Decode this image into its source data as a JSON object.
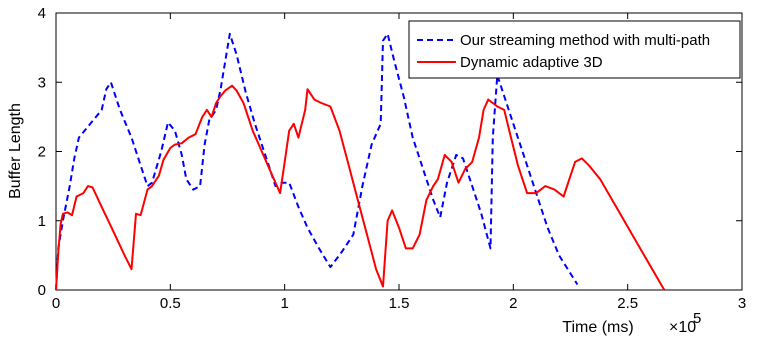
{
  "chart_data": {
    "type": "line",
    "xlabel": "Time (ms)",
    "x_multiplier_label": "×10",
    "x_multiplier_exp": "5",
    "ylabel": "Buffer Length",
    "xlim": [
      0,
      3
    ],
    "ylim": [
      0,
      4
    ],
    "x_ticks": [
      0,
      0.5,
      1,
      1.5,
      2,
      2.5,
      3
    ],
    "x_tick_labels": [
      "0",
      "0.5",
      "1",
      "1.5",
      "2",
      "2.5",
      "3"
    ],
    "y_ticks": [
      0,
      1,
      2,
      3,
      4
    ],
    "y_tick_labels": [
      "0",
      "1",
      "2",
      "3",
      "4"
    ],
    "grid": false,
    "legend_position": "top-right",
    "series": [
      {
        "name": "Our streaming method with multi-path",
        "color": "#0000ff",
        "style": "dashed",
        "points": [
          [
            0.0,
            0.0
          ],
          [
            0.01,
            0.6
          ],
          [
            0.03,
            1.0
          ],
          [
            0.06,
            1.5
          ],
          [
            0.08,
            1.9
          ],
          [
            0.1,
            2.2
          ],
          [
            0.15,
            2.4
          ],
          [
            0.2,
            2.6
          ],
          [
            0.22,
            2.9
          ],
          [
            0.24,
            3.0
          ],
          [
            0.28,
            2.6
          ],
          [
            0.33,
            2.2
          ],
          [
            0.37,
            1.8
          ],
          [
            0.4,
            1.5
          ],
          [
            0.42,
            1.55
          ],
          [
            0.46,
            2.0
          ],
          [
            0.49,
            2.42
          ],
          [
            0.52,
            2.3
          ],
          [
            0.55,
            1.95
          ],
          [
            0.57,
            1.6
          ],
          [
            0.6,
            1.45
          ],
          [
            0.63,
            1.5
          ],
          [
            0.65,
            2.1
          ],
          [
            0.67,
            2.45
          ],
          [
            0.7,
            2.6
          ],
          [
            0.72,
            2.9
          ],
          [
            0.74,
            3.3
          ],
          [
            0.76,
            3.7
          ],
          [
            0.79,
            3.4
          ],
          [
            0.83,
            2.85
          ],
          [
            0.87,
            2.4
          ],
          [
            0.9,
            2.1
          ],
          [
            0.93,
            1.8
          ],
          [
            0.96,
            1.5
          ],
          [
            0.99,
            1.55
          ],
          [
            1.02,
            1.55
          ],
          [
            1.06,
            1.2
          ],
          [
            1.1,
            0.9
          ],
          [
            1.15,
            0.6
          ],
          [
            1.2,
            0.33
          ],
          [
            1.25,
            0.55
          ],
          [
            1.3,
            0.8
          ],
          [
            1.34,
            1.5
          ],
          [
            1.38,
            2.1
          ],
          [
            1.42,
            2.4
          ],
          [
            1.43,
            3.6
          ],
          [
            1.45,
            3.7
          ],
          [
            1.48,
            3.3
          ],
          [
            1.52,
            2.8
          ],
          [
            1.56,
            2.2
          ],
          [
            1.59,
            1.9
          ],
          [
            1.62,
            1.6
          ],
          [
            1.65,
            1.3
          ],
          [
            1.68,
            1.05
          ],
          [
            1.71,
            1.55
          ],
          [
            1.75,
            1.95
          ],
          [
            1.78,
            1.9
          ],
          [
            1.82,
            1.5
          ],
          [
            1.86,
            1.1
          ],
          [
            1.9,
            0.6
          ],
          [
            1.91,
            2.2
          ],
          [
            1.93,
            3.1
          ],
          [
            1.96,
            2.8
          ],
          [
            2.0,
            2.4
          ],
          [
            2.05,
            1.9
          ],
          [
            2.1,
            1.4
          ],
          [
            2.15,
            0.9
          ],
          [
            2.2,
            0.5
          ],
          [
            2.28,
            0.08
          ]
        ]
      },
      {
        "name": "Dynamic adaptive 3D",
        "color": "#ff0000",
        "style": "solid",
        "points": [
          [
            0.0,
            0.0
          ],
          [
            0.01,
            0.55
          ],
          [
            0.02,
            0.95
          ],
          [
            0.03,
            1.1
          ],
          [
            0.05,
            1.12
          ],
          [
            0.07,
            1.08
          ],
          [
            0.09,
            1.35
          ],
          [
            0.12,
            1.4
          ],
          [
            0.14,
            1.5
          ],
          [
            0.16,
            1.48
          ],
          [
            0.2,
            1.2
          ],
          [
            0.25,
            0.85
          ],
          [
            0.3,
            0.5
          ],
          [
            0.33,
            0.3
          ],
          [
            0.35,
            1.1
          ],
          [
            0.37,
            1.08
          ],
          [
            0.4,
            1.45
          ],
          [
            0.42,
            1.5
          ],
          [
            0.45,
            1.65
          ],
          [
            0.47,
            1.88
          ],
          [
            0.5,
            2.05
          ],
          [
            0.52,
            2.1
          ],
          [
            0.55,
            2.12
          ],
          [
            0.58,
            2.2
          ],
          [
            0.61,
            2.25
          ],
          [
            0.64,
            2.5
          ],
          [
            0.66,
            2.6
          ],
          [
            0.68,
            2.5
          ],
          [
            0.7,
            2.7
          ],
          [
            0.72,
            2.8
          ],
          [
            0.74,
            2.88
          ],
          [
            0.77,
            2.95
          ],
          [
            0.79,
            2.88
          ],
          [
            0.82,
            2.7
          ],
          [
            0.86,
            2.3
          ],
          [
            0.9,
            2.0
          ],
          [
            0.94,
            1.7
          ],
          [
            0.98,
            1.4
          ],
          [
            1.0,
            1.85
          ],
          [
            1.02,
            2.3
          ],
          [
            1.04,
            2.4
          ],
          [
            1.06,
            2.2
          ],
          [
            1.09,
            2.6
          ],
          [
            1.1,
            2.9
          ],
          [
            1.13,
            2.75
          ],
          [
            1.16,
            2.7
          ],
          [
            1.2,
            2.65
          ],
          [
            1.24,
            2.3
          ],
          [
            1.28,
            1.8
          ],
          [
            1.32,
            1.3
          ],
          [
            1.36,
            0.8
          ],
          [
            1.4,
            0.3
          ],
          [
            1.43,
            0.05
          ],
          [
            1.45,
            1.0
          ],
          [
            1.47,
            1.15
          ],
          [
            1.5,
            0.9
          ],
          [
            1.53,
            0.6
          ],
          [
            1.56,
            0.6
          ],
          [
            1.59,
            0.8
          ],
          [
            1.62,
            1.3
          ],
          [
            1.65,
            1.5
          ],
          [
            1.67,
            1.6
          ],
          [
            1.7,
            1.95
          ],
          [
            1.73,
            1.85
          ],
          [
            1.76,
            1.55
          ],
          [
            1.79,
            1.75
          ],
          [
            1.82,
            1.85
          ],
          [
            1.85,
            2.2
          ],
          [
            1.87,
            2.6
          ],
          [
            1.89,
            2.75
          ],
          [
            1.91,
            2.7
          ],
          [
            1.93,
            2.65
          ],
          [
            1.96,
            2.6
          ],
          [
            1.99,
            2.2
          ],
          [
            2.02,
            1.8
          ],
          [
            2.06,
            1.4
          ],
          [
            2.1,
            1.4
          ],
          [
            2.14,
            1.5
          ],
          [
            2.18,
            1.45
          ],
          [
            2.22,
            1.35
          ],
          [
            2.25,
            1.65
          ],
          [
            2.27,
            1.85
          ],
          [
            2.3,
            1.9
          ],
          [
            2.33,
            1.8
          ],
          [
            2.38,
            1.6
          ],
          [
            2.45,
            1.2
          ],
          [
            2.52,
            0.8
          ],
          [
            2.59,
            0.4
          ],
          [
            2.66,
            0.0
          ]
        ]
      }
    ]
  }
}
